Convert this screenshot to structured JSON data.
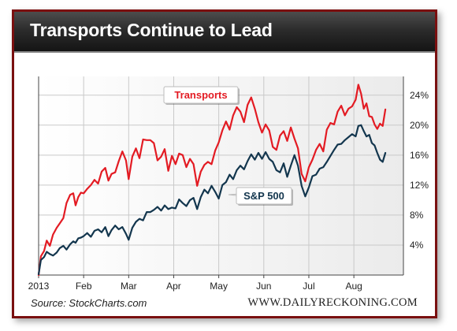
{
  "header": {
    "title": "Transports Continue to Lead"
  },
  "footer": {
    "source": "Source: StockCharts.com",
    "brand": "WWW.DAILYRECKONING.COM"
  },
  "colors": {
    "transports": "#e31b23",
    "sp500": "#13364e",
    "frame": "#7a1010",
    "title_bg": "#222222"
  },
  "chart_data": {
    "type": "line",
    "title": "Transports Continue to Lead",
    "xlabel": "",
    "ylabel": "",
    "x_tick_labels": [
      "2013",
      "Feb",
      "Mar",
      "Apr",
      "May",
      "Jun",
      "Jul",
      "Aug"
    ],
    "x_tick_month_index": [
      0,
      1,
      2,
      3,
      4,
      5,
      6,
      7
    ],
    "y_tick_labels": [
      "4%",
      "8%",
      "12%",
      "16%",
      "20%",
      "24%"
    ],
    "y_ticks": [
      4,
      8,
      12,
      16,
      20,
      24
    ],
    "ylim": [
      0,
      26.5
    ],
    "y_axis_position": "right",
    "grid": true,
    "x_unit": "months since Jan 1 2013",
    "series": [
      {
        "name": "Transports",
        "color": "#e31b23",
        "label_position": "near-peak-May",
        "points": [
          [
            0.0,
            0.0
          ],
          [
            0.05,
            2.5
          ],
          [
            0.12,
            3.2
          ],
          [
            0.18,
            4.6
          ],
          [
            0.25,
            3.9
          ],
          [
            0.32,
            5.4
          ],
          [
            0.4,
            6.3
          ],
          [
            0.47,
            6.9
          ],
          [
            0.55,
            7.6
          ],
          [
            0.62,
            9.6
          ],
          [
            0.7,
            10.7
          ],
          [
            0.77,
            10.9
          ],
          [
            0.82,
            9.3
          ],
          [
            0.88,
            10.4
          ],
          [
            0.94,
            11.0
          ],
          [
            1.0,
            10.9
          ],
          [
            1.08,
            11.5
          ],
          [
            1.16,
            12.0
          ],
          [
            1.24,
            12.7
          ],
          [
            1.32,
            12.2
          ],
          [
            1.4,
            13.8
          ],
          [
            1.48,
            14.3
          ],
          [
            1.55,
            12.6
          ],
          [
            1.62,
            13.5
          ],
          [
            1.7,
            13.7
          ],
          [
            1.78,
            15.2
          ],
          [
            1.86,
            16.5
          ],
          [
            1.94,
            15.3
          ],
          [
            2.0,
            12.8
          ],
          [
            2.08,
            15.8
          ],
          [
            2.16,
            16.9
          ],
          [
            2.24,
            15.6
          ],
          [
            2.32,
            18.1
          ],
          [
            2.4,
            18.0
          ],
          [
            2.48,
            18.0
          ],
          [
            2.56,
            17.6
          ],
          [
            2.64,
            15.3
          ],
          [
            2.72,
            15.8
          ],
          [
            2.8,
            16.8
          ],
          [
            2.88,
            13.9
          ],
          [
            2.96,
            15.9
          ],
          [
            3.04,
            14.8
          ],
          [
            3.12,
            16.2
          ],
          [
            3.2,
            16.0
          ],
          [
            3.28,
            14.4
          ],
          [
            3.36,
            15.5
          ],
          [
            3.44,
            14.8
          ],
          [
            3.52,
            11.9
          ],
          [
            3.6,
            13.8
          ],
          [
            3.68,
            14.7
          ],
          [
            3.76,
            15.1
          ],
          [
            3.84,
            14.8
          ],
          [
            3.92,
            16.6
          ],
          [
            4.0,
            17.7
          ],
          [
            4.08,
            19.3
          ],
          [
            4.16,
            20.5
          ],
          [
            4.24,
            19.4
          ],
          [
            4.32,
            21.3
          ],
          [
            4.4,
            22.4
          ],
          [
            4.48,
            21.8
          ],
          [
            4.56,
            20.4
          ],
          [
            4.64,
            22.7
          ],
          [
            4.72,
            23.7
          ],
          [
            4.8,
            22.2
          ],
          [
            4.88,
            20.4
          ],
          [
            4.96,
            19.0
          ],
          [
            5.04,
            20.1
          ],
          [
            5.12,
            19.3
          ],
          [
            5.2,
            17.1
          ],
          [
            5.28,
            16.7
          ],
          [
            5.36,
            18.6
          ],
          [
            5.44,
            19.2
          ],
          [
            5.52,
            17.9
          ],
          [
            5.6,
            19.7
          ],
          [
            5.68,
            18.2
          ],
          [
            5.76,
            16.9
          ],
          [
            5.84,
            13.5
          ],
          [
            5.92,
            12.5
          ],
          [
            6.0,
            14.4
          ],
          [
            6.08,
            15.4
          ],
          [
            6.16,
            16.7
          ],
          [
            6.24,
            17.5
          ],
          [
            6.32,
            16.5
          ],
          [
            6.4,
            19.4
          ],
          [
            6.48,
            20.3
          ],
          [
            6.56,
            20.1
          ],
          [
            6.64,
            21.8
          ],
          [
            6.72,
            22.6
          ],
          [
            6.8,
            21.3
          ],
          [
            6.88,
            22.2
          ],
          [
            6.96,
            22.5
          ],
          [
            7.04,
            23.4
          ],
          [
            7.1,
            25.4
          ],
          [
            7.16,
            24.2
          ],
          [
            7.22,
            22.2
          ],
          [
            7.28,
            22.9
          ],
          [
            7.34,
            21.2
          ],
          [
            7.4,
            21.1
          ],
          [
            7.46,
            20.1
          ],
          [
            7.52,
            19.5
          ],
          [
            7.58,
            20.2
          ],
          [
            7.64,
            19.9
          ],
          [
            7.7,
            22.1
          ]
        ]
      },
      {
        "name": "S&P 500",
        "color": "#13364e",
        "label_position": "mid-chart-June",
        "points": [
          [
            0.0,
            0.1
          ],
          [
            0.05,
            2.0
          ],
          [
            0.12,
            2.4
          ],
          [
            0.18,
            3.1
          ],
          [
            0.25,
            2.8
          ],
          [
            0.32,
            2.6
          ],
          [
            0.4,
            3.0
          ],
          [
            0.47,
            3.6
          ],
          [
            0.55,
            3.9
          ],
          [
            0.62,
            3.4
          ],
          [
            0.7,
            4.1
          ],
          [
            0.77,
            4.5
          ],
          [
            0.82,
            4.3
          ],
          [
            0.88,
            4.9
          ],
          [
            0.94,
            5.0
          ],
          [
            1.0,
            5.2
          ],
          [
            1.08,
            5.6
          ],
          [
            1.16,
            5.1
          ],
          [
            1.24,
            5.9
          ],
          [
            1.32,
            6.1
          ],
          [
            1.4,
            5.7
          ],
          [
            1.48,
            6.4
          ],
          [
            1.55,
            5.2
          ],
          [
            1.62,
            6.0
          ],
          [
            1.7,
            6.6
          ],
          [
            1.78,
            6.1
          ],
          [
            1.86,
            6.4
          ],
          [
            1.94,
            5.5
          ],
          [
            2.0,
            4.7
          ],
          [
            2.08,
            6.3
          ],
          [
            2.16,
            7.1
          ],
          [
            2.24,
            7.5
          ],
          [
            2.32,
            7.3
          ],
          [
            2.4,
            8.4
          ],
          [
            2.48,
            8.4
          ],
          [
            2.56,
            8.7
          ],
          [
            2.64,
            9.1
          ],
          [
            2.72,
            8.6
          ],
          [
            2.8,
            9.3
          ],
          [
            2.88,
            8.8
          ],
          [
            2.96,
            9.0
          ],
          [
            3.04,
            8.9
          ],
          [
            3.12,
            10.1
          ],
          [
            3.2,
            9.6
          ],
          [
            3.28,
            9.2
          ],
          [
            3.36,
            10.0
          ],
          [
            3.44,
            10.3
          ],
          [
            3.52,
            8.8
          ],
          [
            3.6,
            10.4
          ],
          [
            3.68,
            11.4
          ],
          [
            3.76,
            10.9
          ],
          [
            3.84,
            11.9
          ],
          [
            3.92,
            11.1
          ],
          [
            4.0,
            10.2
          ],
          [
            4.08,
            12.0
          ],
          [
            4.16,
            12.4
          ],
          [
            4.24,
            13.4
          ],
          [
            4.32,
            12.8
          ],
          [
            4.4,
            14.0
          ],
          [
            4.48,
            14.6
          ],
          [
            4.56,
            14.1
          ],
          [
            4.64,
            15.2
          ],
          [
            4.72,
            16.1
          ],
          [
            4.8,
            15.4
          ],
          [
            4.88,
            16.3
          ],
          [
            4.96,
            15.5
          ],
          [
            5.04,
            16.4
          ],
          [
            5.12,
            15.5
          ],
          [
            5.2,
            15.1
          ],
          [
            5.28,
            14.0
          ],
          [
            5.36,
            13.7
          ],
          [
            5.44,
            14.9
          ],
          [
            5.52,
            13.1
          ],
          [
            5.6,
            14.6
          ],
          [
            5.68,
            16.0
          ],
          [
            5.76,
            14.6
          ],
          [
            5.84,
            11.9
          ],
          [
            5.92,
            10.5
          ],
          [
            6.0,
            11.7
          ],
          [
            6.08,
            13.2
          ],
          [
            6.16,
            13.4
          ],
          [
            6.24,
            14.2
          ],
          [
            6.32,
            14.4
          ],
          [
            6.4,
            15.1
          ],
          [
            6.48,
            15.9
          ],
          [
            6.56,
            16.7
          ],
          [
            6.64,
            17.4
          ],
          [
            6.72,
            17.5
          ],
          [
            6.8,
            18.0
          ],
          [
            6.88,
            18.4
          ],
          [
            6.96,
            18.8
          ],
          [
            7.04,
            18.5
          ],
          [
            7.1,
            19.9
          ],
          [
            7.16,
            20.0
          ],
          [
            7.22,
            19.2
          ],
          [
            7.28,
            18.5
          ],
          [
            7.34,
            18.7
          ],
          [
            7.4,
            17.6
          ],
          [
            7.46,
            17.3
          ],
          [
            7.52,
            16.3
          ],
          [
            7.58,
            15.4
          ],
          [
            7.64,
            15.1
          ],
          [
            7.7,
            16.3
          ]
        ]
      }
    ]
  }
}
